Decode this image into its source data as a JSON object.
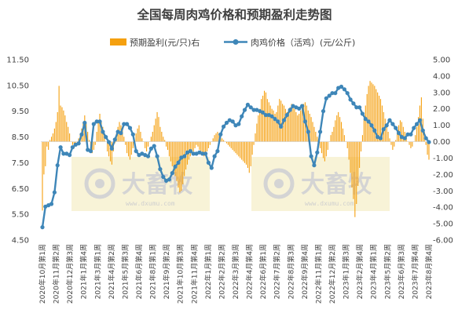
{
  "chart_data": {
    "type": "bar+line",
    "title": "全国每周肉鸡价格和预期盈利走势图",
    "legend": {
      "position": "top",
      "bar_label": "预期盈利(元/只)右",
      "line_label": "肉鸡价格（活鸡）(元/公斤)"
    },
    "left_axis": {
      "ylim": [
        4.5,
        11.5
      ],
      "ticks": [
        "11.50",
        "10.50",
        "9.50",
        "8.50",
        "7.50",
        "6.50",
        "5.50",
        "4.50"
      ]
    },
    "right_axis": {
      "ylim": [
        -6,
        5
      ],
      "ticks": [
        "5.00",
        "4.00",
        "3.00",
        "2.00",
        "1.00",
        "0.00",
        "-1.00",
        "-2.00",
        "-3.00",
        "-4.00",
        "-5.00",
        "-6.00"
      ]
    },
    "colors": {
      "bar": "#f5a00f",
      "line": "#3e86b8",
      "marker_fill": "#3e86b8",
      "watermark_bg": "#f6efc9"
    },
    "watermark": {
      "text": "大畜牧",
      "sub": "www.dxumu.com"
    },
    "x_labels": [
      "2020年10月第1周",
      "2020年11月第2周",
      "2020年12月第3周",
      "2021年1月第4周",
      "2021年3月第1周",
      "2021年4月第2周",
      "2021年5月第3周",
      "2021年6月第4周",
      "2021年8月第1周",
      "2021年9月第2周",
      "2021年10月第3周",
      "2021年11月第4周",
      "2022年1月第1周",
      "2022年2月第2周",
      "2022年3月第3周",
      "2022年4月第4周",
      "2022年6月第1周",
      "2022年7月第2周",
      "2022年8月第3周",
      "2022年9月第4周",
      "2022年11月第1周",
      "2022年12月第2周",
      "2023年1月第3周",
      "2023年2月第4周",
      "2023年4月第1周",
      "2023年5月第2周",
      "2023年6月第3周",
      "2023年7月第4周",
      "2023年8月第4周"
    ],
    "series": [
      {
        "name": "预期盈利(元/只)右",
        "axis": "right",
        "type": "bar",
        "values": [
          -4.2,
          -2.0,
          -1.5,
          -0.3,
          -0.5,
          0.1,
          0.3,
          0.5,
          0.8,
          1.2,
          1.8,
          3.4,
          2.2,
          2.1,
          1.9,
          1.6,
          1.2,
          0.9,
          0.5,
          0.0,
          -0.2,
          -0.4,
          -0.2,
          0.0,
          0.2,
          0.5,
          0.8,
          1.2,
          1.6,
          1.1,
          0.6,
          0.1,
          -0.4,
          -0.7,
          -0.5,
          -0.2,
          0.6,
          1.3,
          1.7,
          1.2,
          0.9,
          0.4,
          0.0,
          -0.6,
          -0.9,
          -1.2,
          -1.4,
          -0.6,
          -0.1,
          0.5,
          0.9,
          1.2,
          1.0,
          0.9,
          0.3,
          -0.2,
          -0.7,
          -0.9,
          -1.1,
          -0.8,
          -0.4,
          0.0,
          0.5,
          0.8,
          1.0,
          0.6,
          0.2,
          0.0,
          -0.4,
          -0.6,
          -0.3,
          0.0,
          0.3,
          0.6,
          1.0,
          1.4,
          1.8,
          1.5,
          0.9,
          0.6,
          0.3,
          0.1,
          -0.3,
          -0.5,
          -0.9,
          -1.2,
          -1.5,
          -1.9,
          -2.1,
          -2.4,
          -2.8,
          -3.1,
          -3.0,
          -2.6,
          -2.1,
          -1.7,
          -1.4,
          -1.1,
          -0.9,
          -0.7,
          -0.6,
          -0.4,
          -0.2,
          -0.3,
          -0.5,
          -0.6,
          -0.8,
          -0.9,
          -0.8,
          -0.6,
          -0.4,
          -0.2,
          0.0,
          0.2,
          0.4,
          0.5,
          0.6,
          0.5,
          0.3,
          0.2,
          0.1,
          0.0,
          -0.1,
          -0.2,
          -0.3,
          -0.4,
          -0.5,
          -0.6,
          -0.7,
          -0.8,
          -0.9,
          -1.0,
          -1.1,
          -1.2,
          -1.3,
          -1.4,
          -1.6,
          -1.9,
          -1.5,
          -0.8,
          -0.2,
          0.5,
          1.1,
          1.6,
          2.0,
          2.6,
          2.8,
          3.1,
          3.0,
          2.6,
          2.4,
          2.2,
          2.0,
          1.9,
          1.7,
          1.8,
          2.2,
          2.6,
          2.5,
          2.3,
          2.2,
          2.0,
          1.8,
          1.9,
          2.1,
          2.3,
          2.2,
          2.0,
          1.8,
          1.6,
          1.7,
          1.9,
          2.1,
          2.3,
          2.4,
          2.2,
          1.9,
          1.7,
          1.5,
          1.2,
          0.9,
          0.6,
          0.3,
          0.0,
          -0.4,
          -0.7,
          -1.0,
          -1.2,
          -0.9,
          -0.5,
          0.0,
          0.4,
          0.6,
          0.9,
          1.3,
          1.6,
          1.8,
          1.5,
          1.2,
          0.8,
          0.4,
          0.0,
          -0.4,
          -1.1,
          -1.9,
          -2.8,
          -3.5,
          -4.6,
          -3.8,
          -2.7,
          -1.6,
          -0.6,
          0.4,
          1.4,
          2.2,
          2.9,
          3.4,
          3.7,
          3.6,
          3.5,
          3.4,
          3.2,
          3.0,
          2.8,
          2.6,
          2.2,
          1.8,
          1.4,
          1.0,
          0.6,
          0.2,
          -0.2,
          -0.5,
          -0.3,
          0.1,
          0.6,
          1.0,
          1.3,
          1.2,
          0.9,
          0.6,
          0.3,
          0.0,
          -0.2,
          -0.4,
          -0.3,
          0.0,
          0.4,
          0.9,
          1.5,
          2.2,
          2.7,
          1.4,
          0.6,
          -0.2,
          -0.8,
          -1.1
        ]
      },
      {
        "name": "肉鸡价格（活鸡）(元/公斤)",
        "axis": "left",
        "type": "line",
        "values": [
          5.0,
          5.8,
          5.85,
          5.9,
          6.35,
          7.4,
          8.1,
          7.85,
          7.85,
          7.8,
          8.1,
          8.2,
          8.25,
          8.6,
          9.05,
          8.0,
          7.95,
          9.0,
          9.1,
          9.1,
          8.7,
          8.5,
          8.3,
          8.05,
          8.4,
          8.7,
          8.65,
          9.0,
          9.0,
          8.85,
          8.6,
          7.95,
          7.8,
          7.85,
          7.8,
          7.75,
          8.05,
          8.15,
          7.75,
          7.25,
          6.95,
          6.8,
          6.85,
          7.1,
          7.35,
          7.5,
          7.7,
          7.75,
          7.9,
          7.95,
          7.85,
          7.85,
          7.9,
          7.85,
          7.85,
          7.5,
          7.3,
          7.75,
          7.95,
          8.6,
          8.9,
          9.05,
          9.15,
          9.1,
          8.95,
          9.0,
          9.3,
          9.55,
          9.75,
          9.65,
          9.55,
          9.55,
          9.5,
          9.45,
          9.35,
          9.35,
          9.3,
          9.2,
          9.1,
          8.9,
          9.15,
          9.35,
          9.55,
          9.7,
          9.65,
          9.6,
          9.7,
          9.1,
          8.7,
          7.75,
          7.4,
          7.9,
          8.7,
          9.5,
          10.0,
          10.1,
          10.2,
          10.2,
          10.4,
          10.45,
          10.35,
          10.2,
          9.95,
          9.8,
          9.65,
          9.65,
          9.4,
          9.2,
          9.1,
          8.95,
          8.75,
          8.5,
          8.45,
          8.8,
          8.95,
          9.15,
          9.0,
          8.85,
          8.65,
          8.5,
          8.45,
          8.6,
          8.6,
          8.85,
          9.0,
          9.15,
          8.75,
          8.45,
          8.3
        ]
      }
    ]
  }
}
